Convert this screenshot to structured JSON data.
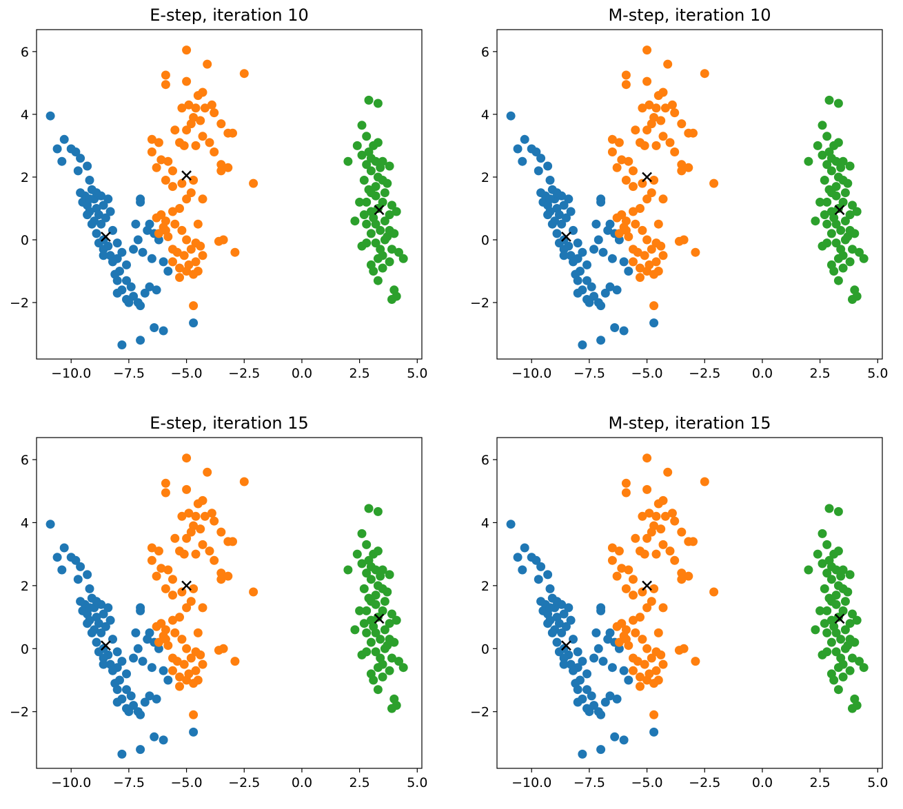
{
  "colors": {
    "cluster_0": "#1f77b4",
    "cluster_1": "#ff7f0e",
    "cluster_2": "#2ca02c",
    "centroid": "#000000",
    "axes": "#000000"
  },
  "chart_data": [
    {
      "type": "scatter",
      "title": "E-step, iteration 10",
      "xlim": [
        -11.5,
        5.2
      ],
      "ylim": [
        -3.8,
        6.7
      ],
      "xticks": [
        -10.0,
        -7.5,
        -5.0,
        -2.5,
        0.0,
        2.5,
        5.0
      ],
      "xtick_labels": [
        "−10.0",
        "−7.5",
        "−5.0",
        "−2.5",
        "0.0",
        "2.5",
        "5.0"
      ],
      "yticks": [
        -2,
        0,
        2,
        4,
        6
      ],
      "ytick_labels": [
        "−2",
        "0",
        "2",
        "4",
        "6"
      ],
      "centroids": [
        [
          -8.5,
          0.1
        ],
        [
          -5.0,
          2.05
        ],
        [
          3.35,
          0.95
        ]
      ]
    },
    {
      "type": "scatter",
      "title": "M-step, iteration 10",
      "xlim": [
        -11.5,
        5.2
      ],
      "ylim": [
        -3.8,
        6.7
      ],
      "xticks": [
        -10.0,
        -7.5,
        -5.0,
        -2.5,
        0.0,
        2.5,
        5.0
      ],
      "xtick_labels": [
        "−10.0",
        "−7.5",
        "−5.0",
        "−2.5",
        "0.0",
        "2.5",
        "5.0"
      ],
      "yticks": [
        -2,
        0,
        2,
        4,
        6
      ],
      "ytick_labels": [
        "−2",
        "0",
        "2",
        "4",
        "6"
      ],
      "centroids": [
        [
          -8.5,
          0.1
        ],
        [
          -5.0,
          2.0
        ],
        [
          3.35,
          0.95
        ]
      ]
    },
    {
      "type": "scatter",
      "title": "E-step, iteration 15",
      "xlim": [
        -11.5,
        5.2
      ],
      "ylim": [
        -3.8,
        6.7
      ],
      "xticks": [
        -10.0,
        -7.5,
        -5.0,
        -2.5,
        0.0,
        2.5,
        5.0
      ],
      "xtick_labels": [
        "−10.0",
        "−7.5",
        "−5.0",
        "−2.5",
        "0.0",
        "2.5",
        "5.0"
      ],
      "yticks": [
        -2,
        0,
        2,
        4,
        6
      ],
      "ytick_labels": [
        "−2",
        "0",
        "2",
        "4",
        "6"
      ],
      "centroids": [
        [
          -8.5,
          0.1
        ],
        [
          -5.0,
          2.0
        ],
        [
          3.35,
          0.95
        ]
      ]
    },
    {
      "type": "scatter",
      "title": "M-step, iteration 15",
      "xlim": [
        -11.5,
        5.2
      ],
      "ylim": [
        -3.8,
        6.7
      ],
      "xticks": [
        -10.0,
        -7.5,
        -5.0,
        -2.5,
        0.0,
        2.5,
        5.0
      ],
      "xtick_labels": [
        "−10.0",
        "−7.5",
        "−5.0",
        "−2.5",
        "0.0",
        "2.5",
        "5.0"
      ],
      "yticks": [
        -2,
        0,
        2,
        4,
        6
      ],
      "ytick_labels": [
        "−2",
        "0",
        "2",
        "4",
        "6"
      ],
      "centroids": [
        [
          -8.5,
          0.1
        ],
        [
          -5.0,
          2.0
        ],
        [
          3.35,
          0.95
        ]
      ]
    }
  ],
  "clusters": [
    {
      "name": "blue",
      "points": [
        [
          -10.9,
          3.95
        ],
        [
          -10.6,
          2.9
        ],
        [
          -10.3,
          3.2
        ],
        [
          -10.4,
          2.5
        ],
        [
          -10.0,
          2.9
        ],
        [
          -9.8,
          2.8
        ],
        [
          -9.6,
          2.6
        ],
        [
          -9.7,
          2.2
        ],
        [
          -9.3,
          2.35
        ],
        [
          -9.2,
          1.9
        ],
        [
          -9.4,
          1.4
        ],
        [
          -9.5,
          1.2
        ],
        [
          -9.3,
          1.1
        ],
        [
          -9.1,
          1.6
        ],
        [
          -9.0,
          1.3
        ],
        [
          -8.9,
          1.0
        ],
        [
          -9.2,
          0.9
        ],
        [
          -8.7,
          1.4
        ],
        [
          -8.6,
          1.1
        ],
        [
          -8.8,
          0.8
        ],
        [
          -8.5,
          0.7
        ],
        [
          -8.3,
          0.9
        ],
        [
          -9.0,
          0.6
        ],
        [
          -8.7,
          0.5
        ],
        [
          -8.9,
          0.2
        ],
        [
          -8.6,
          0.0
        ],
        [
          -8.4,
          -0.2
        ],
        [
          -8.2,
          0.3
        ],
        [
          -8.0,
          -0.1
        ],
        [
          -8.8,
          -0.1
        ],
        [
          -8.3,
          -0.5
        ],
        [
          -8.0,
          -0.6
        ],
        [
          -7.8,
          -0.4
        ],
        [
          -7.6,
          -0.8
        ],
        [
          -7.9,
          -1.0
        ],
        [
          -7.6,
          -1.3
        ],
        [
          -7.4,
          -1.5
        ],
        [
          -7.8,
          -1.6
        ],
        [
          -8.0,
          -1.3
        ],
        [
          -7.3,
          -1.8
        ],
        [
          -7.1,
          -2.0
        ],
        [
          -7.0,
          -2.1
        ],
        [
          -6.8,
          -1.7
        ],
        [
          -7.5,
          -2.0
        ],
        [
          -6.3,
          -1.6
        ],
        [
          -6.6,
          -1.5
        ],
        [
          -7.3,
          -0.3
        ],
        [
          -6.9,
          -0.4
        ],
        [
          -7.1,
          -0.0
        ],
        [
          -7.0,
          1.3
        ],
        [
          -6.6,
          0.5
        ],
        [
          -6.7,
          0.3
        ],
        [
          -6.5,
          -0.6
        ],
        [
          -6.2,
          0.0
        ],
        [
          -7.2,
          0.5
        ],
        [
          -7.0,
          1.2
        ],
        [
          -6.4,
          0.2
        ],
        [
          -6.0,
          -0.7
        ],
        [
          -5.8,
          -1.0
        ],
        [
          -6.4,
          -2.8
        ],
        [
          -6.0,
          -2.9
        ],
        [
          -7.0,
          -3.2
        ],
        [
          -7.8,
          -3.35
        ],
        [
          -4.7,
          -2.65
        ],
        [
          -8.0,
          -1.7
        ],
        [
          -7.6,
          -1.9
        ],
        [
          -8.2,
          -0.7
        ],
        [
          -8.6,
          -0.3
        ],
        [
          -8.9,
          1.5
        ],
        [
          -9.6,
          1.5
        ],
        [
          -9.2,
          1.3
        ],
        [
          -8.4,
          1.3
        ],
        [
          -9.1,
          0.5
        ],
        [
          -9.3,
          0.8
        ],
        [
          -8.6,
          -0.5
        ],
        [
          -8.1,
          -1.1
        ]
      ]
    },
    {
      "name": "orange",
      "points": [
        [
          -5.0,
          6.05
        ],
        [
          -5.9,
          5.25
        ],
        [
          -5.9,
          4.95
        ],
        [
          -5.0,
          5.05
        ],
        [
          -4.5,
          4.6
        ],
        [
          -4.3,
          4.7
        ],
        [
          -4.1,
          5.6
        ],
        [
          -2.5,
          5.3
        ],
        [
          -5.2,
          4.2
        ],
        [
          -4.9,
          4.3
        ],
        [
          -4.6,
          4.2
        ],
        [
          -4.2,
          4.2
        ],
        [
          -3.9,
          4.3
        ],
        [
          -3.8,
          4.05
        ],
        [
          -4.7,
          3.9
        ],
        [
          -4.4,
          3.8
        ],
        [
          -5.5,
          3.5
        ],
        [
          -5.0,
          3.5
        ],
        [
          -4.8,
          3.7
        ],
        [
          -4.3,
          3.3
        ],
        [
          -3.5,
          3.7
        ],
        [
          -3.2,
          3.4
        ],
        [
          -3.0,
          3.4
        ],
        [
          -5.3,
          3.1
        ],
        [
          -5.1,
          3.0
        ],
        [
          -4.6,
          3.0
        ],
        [
          -4.0,
          3.1
        ],
        [
          -3.8,
          2.8
        ],
        [
          -3.5,
          2.4
        ],
        [
          -3.2,
          2.3
        ],
        [
          -3.5,
          2.2
        ],
        [
          -6.5,
          3.2
        ],
        [
          -6.2,
          3.1
        ],
        [
          -6.5,
          2.8
        ],
        [
          -6.1,
          2.55
        ],
        [
          -6.3,
          2.3
        ],
        [
          -5.8,
          2.5
        ],
        [
          -5.6,
          2.2
        ],
        [
          -5.9,
          1.9
        ],
        [
          -5.6,
          1.7
        ],
        [
          -5.2,
          1.8
        ],
        [
          -4.7,
          1.9
        ],
        [
          -4.8,
          1.5
        ],
        [
          -4.3,
          1.3
        ],
        [
          -5.0,
          1.3
        ],
        [
          -2.1,
          1.8
        ],
        [
          -5.3,
          1.0
        ],
        [
          -5.6,
          0.9
        ],
        [
          -5.9,
          0.6
        ],
        [
          -6.1,
          0.8
        ],
        [
          -6.3,
          0.7
        ],
        [
          -6.0,
          0.4
        ],
        [
          -6.2,
          0.2
        ],
        [
          -5.9,
          0.3
        ],
        [
          -5.5,
          0.5
        ],
        [
          -5.2,
          0.3
        ],
        [
          -4.5,
          0.5
        ],
        [
          -5.0,
          0.0
        ],
        [
          -5.8,
          0.1
        ],
        [
          -4.8,
          -0.3
        ],
        [
          -4.6,
          -0.1
        ],
        [
          -5.1,
          -0.5
        ],
        [
          -5.4,
          -0.4
        ],
        [
          -5.6,
          -0.7
        ],
        [
          -5.3,
          -0.9
        ],
        [
          -5.0,
          -1.0
        ],
        [
          -4.9,
          -0.8
        ],
        [
          -4.6,
          -0.7
        ],
        [
          -4.3,
          -0.5
        ],
        [
          -4.5,
          -1.0
        ],
        [
          -4.7,
          -1.1
        ],
        [
          -5.3,
          -1.2
        ],
        [
          -3.6,
          -0.05
        ],
        [
          -3.4,
          -0.0
        ],
        [
          -2.9,
          -0.4
        ],
        [
          -4.7,
          -2.1
        ],
        [
          -5.6,
          -0.3
        ],
        [
          -4.4,
          -0.2
        ]
      ]
    },
    {
      "name": "green",
      "points": [
        [
          2.9,
          4.45
        ],
        [
          3.3,
          4.35
        ],
        [
          2.6,
          3.65
        ],
        [
          2.8,
          3.3
        ],
        [
          2.4,
          3.0
        ],
        [
          3.1,
          3.0
        ],
        [
          3.3,
          3.1
        ],
        [
          2.9,
          2.8
        ],
        [
          2.6,
          2.7
        ],
        [
          3.0,
          2.6
        ],
        [
          3.2,
          2.5
        ],
        [
          3.5,
          2.5
        ],
        [
          2.8,
          2.4
        ],
        [
          3.4,
          2.3
        ],
        [
          3.8,
          2.35
        ],
        [
          2.0,
          2.5
        ],
        [
          3.0,
          2.2
        ],
        [
          3.3,
          2.0
        ],
        [
          2.7,
          1.9
        ],
        [
          3.2,
          1.7
        ],
        [
          3.0,
          1.5
        ],
        [
          2.8,
          1.2
        ],
        [
          2.5,
          1.2
        ],
        [
          3.2,
          1.4
        ],
        [
          3.6,
          1.5
        ],
        [
          3.5,
          1.2
        ],
        [
          3.9,
          1.1
        ],
        [
          3.3,
          1.0
        ],
        [
          3.0,
          0.9
        ],
        [
          2.7,
          0.8
        ],
        [
          3.8,
          0.8
        ],
        [
          4.1,
          0.9
        ],
        [
          3.6,
          0.6
        ],
        [
          3.2,
          0.5
        ],
        [
          2.8,
          0.5
        ],
        [
          2.3,
          0.6
        ],
        [
          3.0,
          0.2
        ],
        [
          3.4,
          0.3
        ],
        [
          3.8,
          0.3
        ],
        [
          4.0,
          0.2
        ],
        [
          3.6,
          0.0
        ],
        [
          3.2,
          -0.1
        ],
        [
          2.8,
          -0.1
        ],
        [
          3.4,
          -0.3
        ],
        [
          3.9,
          -0.3
        ],
        [
          4.2,
          -0.4
        ],
        [
          4.4,
          -0.6
        ],
        [
          3.3,
          -0.6
        ],
        [
          3.0,
          -0.8
        ],
        [
          3.5,
          -0.9
        ],
        [
          3.8,
          -0.7
        ],
        [
          3.1,
          -1.0
        ],
        [
          3.3,
          -1.3
        ],
        [
          4.0,
          -1.6
        ],
        [
          4.1,
          -1.8
        ],
        [
          3.9,
          -1.9
        ],
        [
          2.6,
          -0.2
        ],
        [
          3.7,
          1.8
        ],
        [
          2.9,
          1.6
        ],
        [
          3.5,
          1.9
        ],
        [
          3.7,
          0.1
        ],
        [
          3.1,
          0.7
        ],
        [
          3.5,
          -0.5
        ]
      ]
    }
  ]
}
